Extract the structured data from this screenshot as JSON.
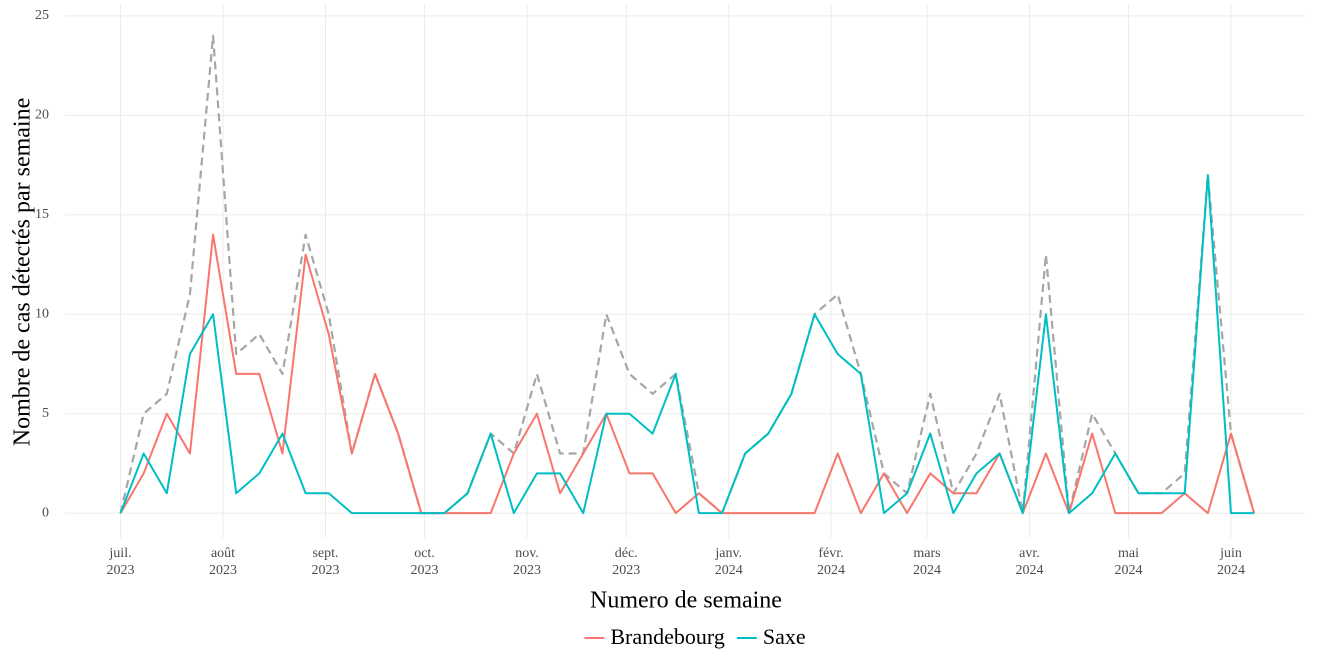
{
  "chart_data": {
    "type": "line",
    "x_label": "Numero de semaine",
    "y_label": "Nombre de cas détectés par semaine",
    "x": [
      0,
      1,
      2,
      3,
      4,
      5,
      6,
      7,
      8,
      9,
      10,
      11,
      12,
      13,
      14,
      15,
      16,
      17,
      18,
      19,
      20,
      21,
      22,
      23,
      24,
      25,
      26,
      27,
      28,
      29,
      30,
      31,
      32,
      33,
      34,
      35,
      36,
      37,
      38,
      39,
      40,
      41,
      42,
      43,
      44,
      45,
      46,
      47,
      48,
      49
    ],
    "series": [
      {
        "name": "Brandebourg",
        "color": "#f8766d",
        "values": [
          0,
          2,
          5,
          3,
          14,
          7,
          7,
          3,
          13,
          9,
          3,
          7,
          4,
          0,
          0,
          0,
          0,
          3,
          5,
          1,
          3,
          5,
          2,
          2,
          0,
          1,
          0,
          0,
          0,
          0,
          0,
          3,
          0,
          2,
          0,
          2,
          1,
          1,
          3,
          0,
          3,
          0,
          4,
          0,
          0,
          0,
          1,
          0,
          4,
          0
        ]
      },
      {
        "name": "Saxe",
        "color": "#00bfc4",
        "values": [
          0,
          3,
          1,
          8,
          10,
          1,
          2,
          4,
          1,
          1,
          0,
          0,
          0,
          0,
          0,
          1,
          4,
          0,
          2,
          2,
          0,
          5,
          5,
          4,
          7,
          0,
          0,
          3,
          4,
          6,
          10,
          8,
          7,
          0,
          1,
          4,
          0,
          2,
          3,
          0,
          10,
          0,
          1,
          3,
          1,
          1,
          1,
          17,
          0,
          0
        ]
      },
      {
        "color": "#a6a6a6",
        "dashed": true,
        "values": [
          0,
          5,
          6,
          11,
          24,
          8,
          9,
          7,
          14,
          10,
          3,
          7,
          4,
          0,
          0,
          1,
          4,
          3,
          7,
          3,
          3,
          10,
          7,
          6,
          7,
          1,
          0,
          3,
          4,
          6,
          10,
          11,
          7,
          2,
          1,
          6,
          1,
          3,
          6,
          0,
          13,
          0,
          5,
          3,
          1,
          1,
          2,
          17,
          4,
          0
        ]
      }
    ],
    "xlim": [
      -2.4,
      51.2
    ],
    "xticks": [
      {
        "value": 0,
        "label": "juil.\n2023"
      },
      {
        "value": 4.43,
        "label": "août\n2023"
      },
      {
        "value": 8.86,
        "label": "sept.\n2023"
      },
      {
        "value": 13.14,
        "label": "oct.\n2023"
      },
      {
        "value": 17.57,
        "label": "nov.\n2023"
      },
      {
        "value": 21.86,
        "label": "déc.\n2023"
      },
      {
        "value": 26.29,
        "label": "janv.\n2024"
      },
      {
        "value": 30.71,
        "label": "févr.\n2024"
      },
      {
        "value": 34.86,
        "label": "mars\n2024"
      },
      {
        "value": 39.29,
        "label": "avr.\n2024"
      },
      {
        "value": 43.57,
        "label": "mai\n2024"
      },
      {
        "value": 48,
        "label": "juin\n2024"
      }
    ],
    "ylim": [
      -1.25,
      25.6
    ],
    "yticks": [
      0,
      5,
      10,
      15,
      20,
      25
    ],
    "grid": true,
    "legend": "bottom"
  }
}
